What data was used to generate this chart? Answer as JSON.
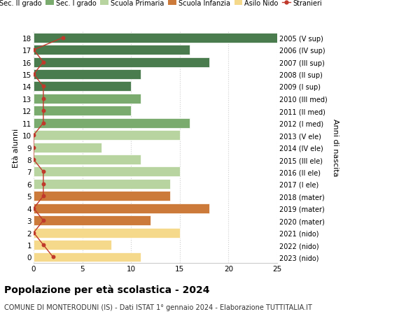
{
  "ages": [
    18,
    17,
    16,
    15,
    14,
    13,
    12,
    11,
    10,
    9,
    8,
    7,
    6,
    5,
    4,
    3,
    2,
    1,
    0
  ],
  "right_labels": [
    "2005 (V sup)",
    "2006 (IV sup)",
    "2007 (III sup)",
    "2008 (II sup)",
    "2009 (I sup)",
    "2010 (III med)",
    "2011 (II med)",
    "2012 (I med)",
    "2013 (V ele)",
    "2014 (IV ele)",
    "2015 (III ele)",
    "2016 (II ele)",
    "2017 (I ele)",
    "2018 (mater)",
    "2019 (mater)",
    "2020 (mater)",
    "2021 (nido)",
    "2022 (nido)",
    "2023 (nido)"
  ],
  "bar_values": [
    25,
    16,
    18,
    11,
    10,
    11,
    10,
    16,
    15,
    7,
    11,
    15,
    14,
    14,
    18,
    12,
    15,
    8,
    11
  ],
  "bar_colors": [
    "#4a7c4e",
    "#4a7c4e",
    "#4a7c4e",
    "#4a7c4e",
    "#4a7c4e",
    "#7aab6e",
    "#7aab6e",
    "#7aab6e",
    "#b8d4a0",
    "#b8d4a0",
    "#b8d4a0",
    "#b8d4a0",
    "#b8d4a0",
    "#cc7a3a",
    "#cc7a3a",
    "#cc7a3a",
    "#f5d98b",
    "#f5d98b",
    "#f5d98b"
  ],
  "stranieri_values": [
    3,
    0,
    1,
    0,
    1,
    1,
    1,
    1,
    0,
    0,
    0,
    1,
    1,
    1,
    0,
    1,
    0,
    1,
    2
  ],
  "legend_labels": [
    "Sec. II grado",
    "Sec. I grado",
    "Scuola Primaria",
    "Scuola Infanzia",
    "Asilo Nido",
    "Stranieri"
  ],
  "legend_colors": [
    "#4a7c4e",
    "#7aab6e",
    "#b8d4a0",
    "#cc7a3a",
    "#f5d98b",
    "#c0392b"
  ],
  "stranieri_color": "#c0392b",
  "title": "Popolazione per età scolastica - 2024",
  "subtitle": "COMUNE DI MONTERODUNI (IS) - Dati ISTAT 1° gennaio 2024 - Elaborazione TUTTITALIA.IT",
  "ylabel_left": "Età alunni",
  "ylabel_right": "Anni di nascita",
  "xlim": [
    0,
    25
  ],
  "background_color": "#ffffff",
  "grid_color": "#cccccc"
}
